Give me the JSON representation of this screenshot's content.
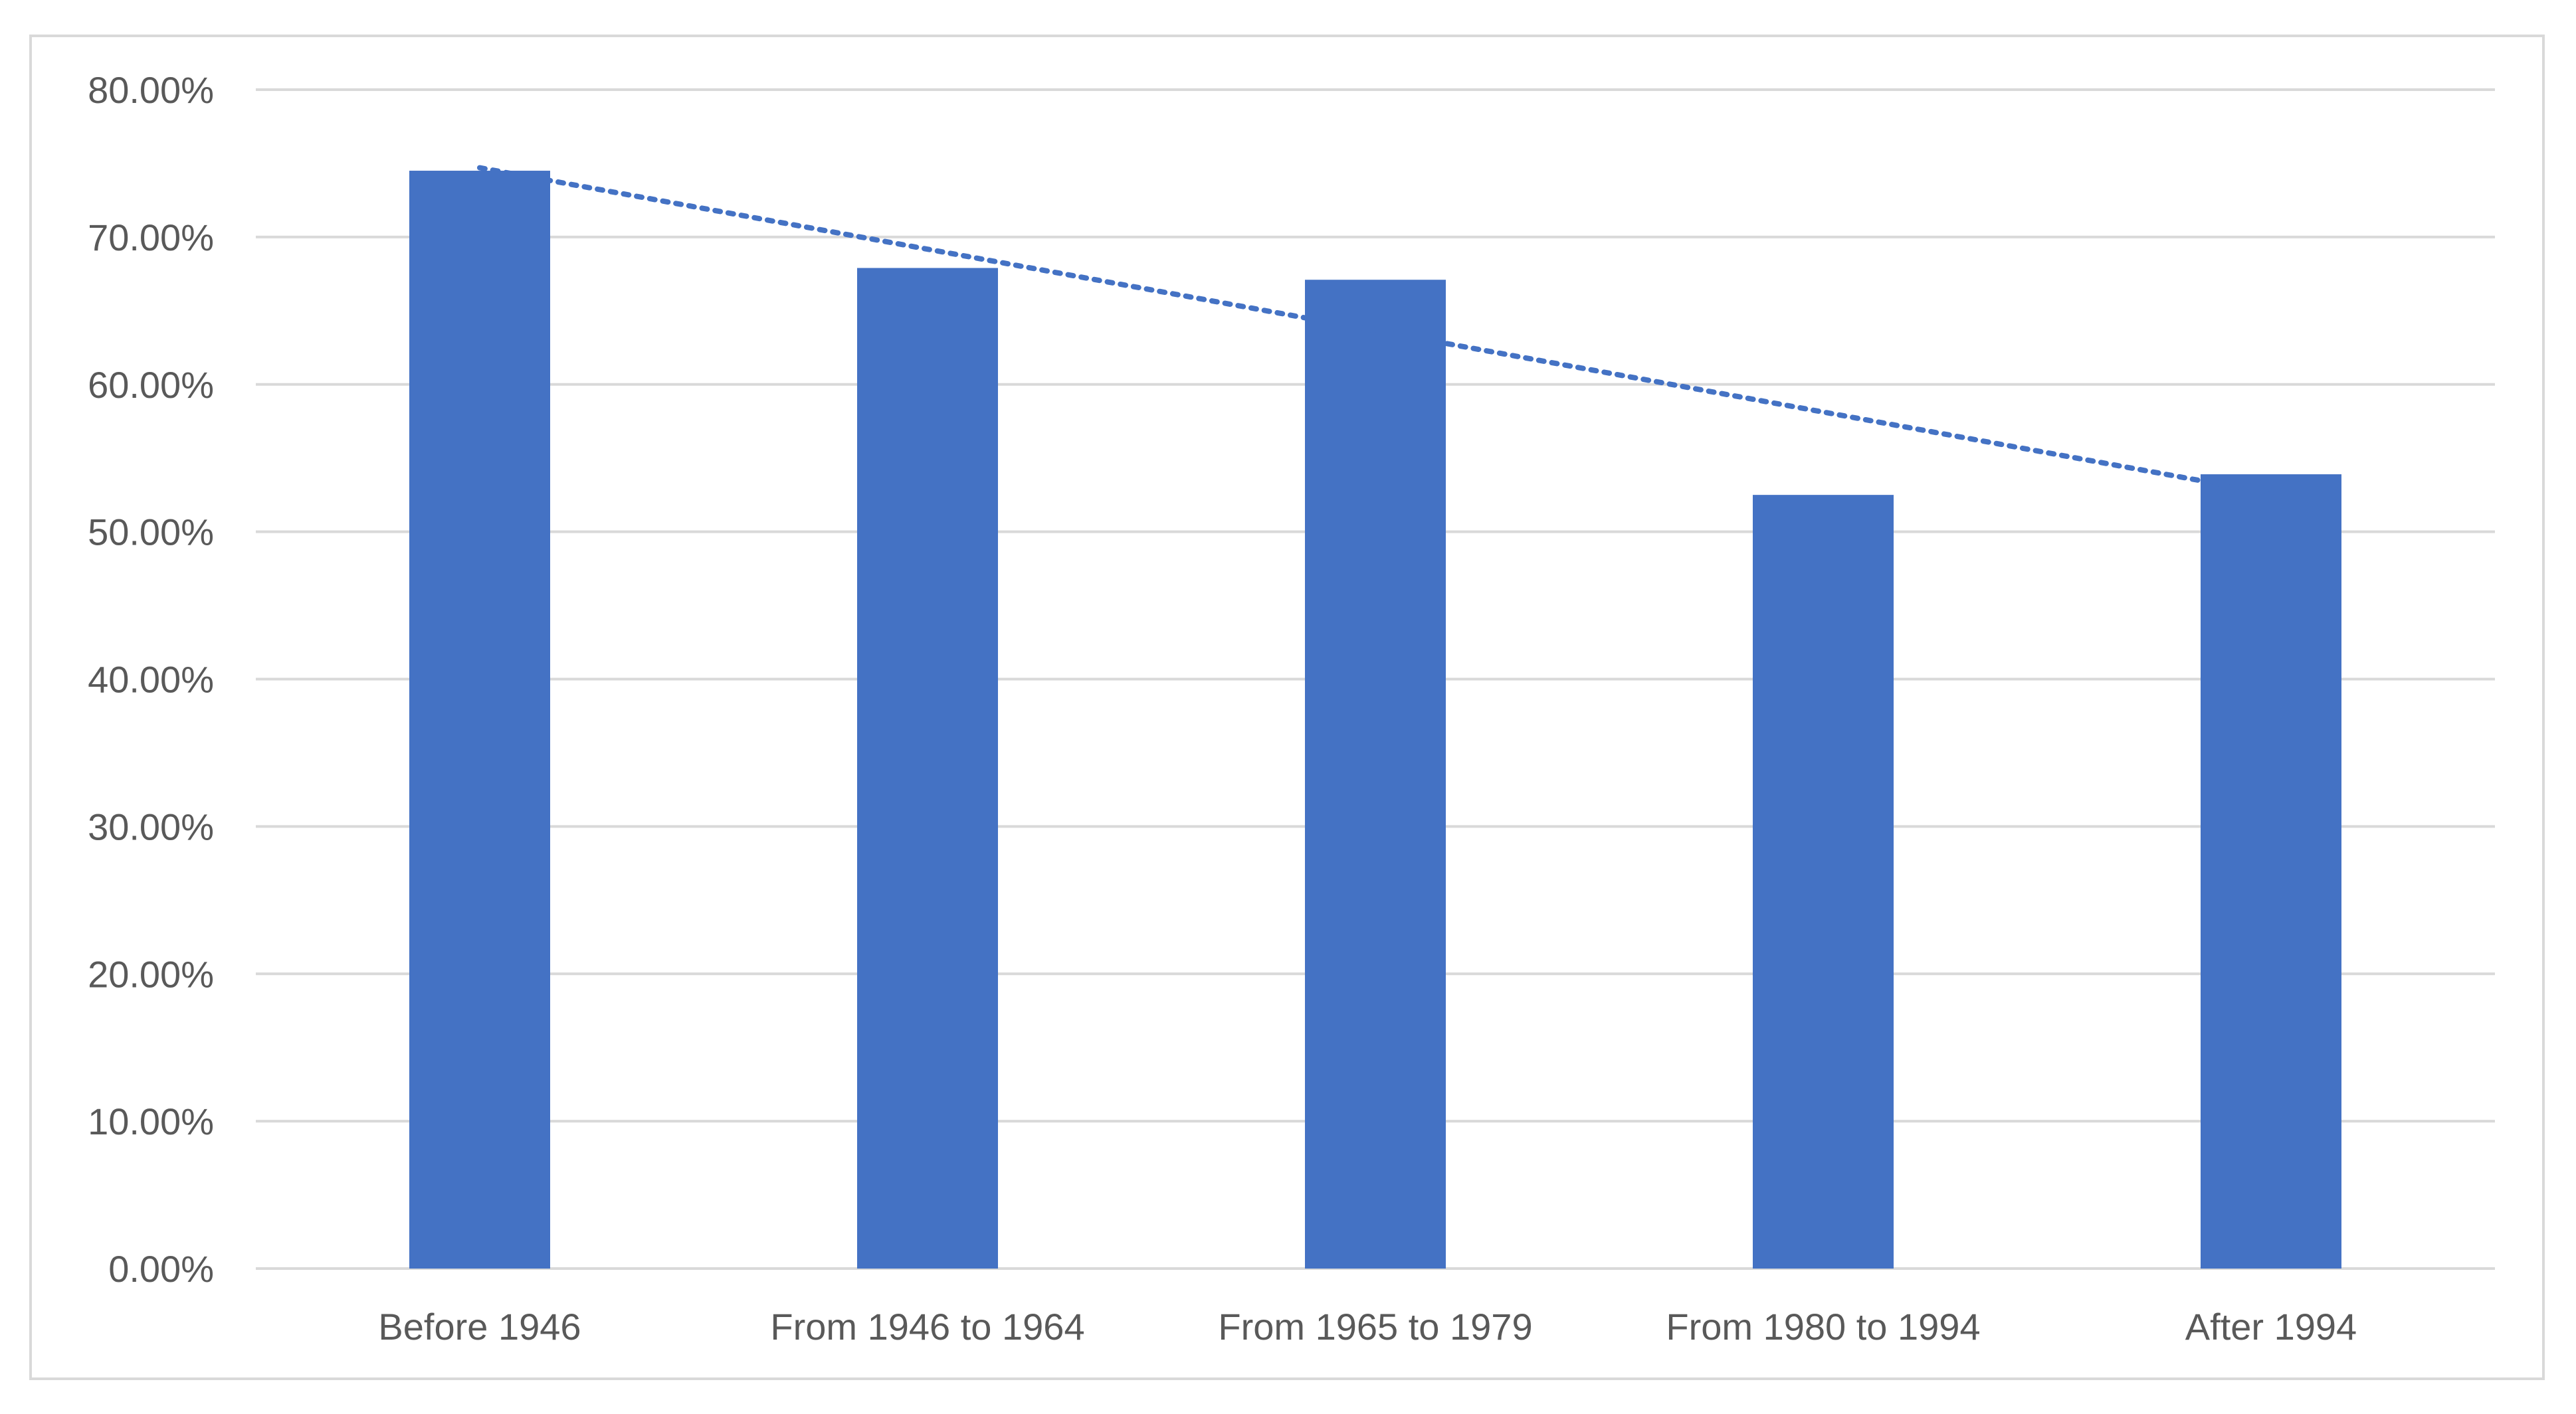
{
  "chart_data": {
    "type": "bar",
    "title": "",
    "xlabel": "",
    "ylabel": "",
    "categories": [
      "Before 1946",
      "From 1946 to 1964",
      "From 1965 to 1979",
      "From 1980 to 1994",
      "After 1994"
    ],
    "values": [
      0.745,
      0.679,
      0.671,
      0.525,
      0.539
    ],
    "ylim": [
      0,
      0.8
    ],
    "yticks": [
      0,
      0.1,
      0.2,
      0.3,
      0.4,
      0.5,
      0.6,
      0.7,
      0.8
    ],
    "ytick_labels": [
      "0.00%",
      "10.00%",
      "20.00%",
      "30.00%",
      "40.00%",
      "50.00%",
      "60.00%",
      "70.00%",
      "80.00%"
    ],
    "grid": true,
    "legend": "none",
    "trendline": {
      "type": "linear",
      "style": "dotted",
      "start_value": 0.747,
      "end_value": 0.526
    },
    "colors": {
      "bar": "#4472c4",
      "trendline": "#4472c4",
      "grid": "#d9d9d9",
      "text": "#595959"
    }
  }
}
